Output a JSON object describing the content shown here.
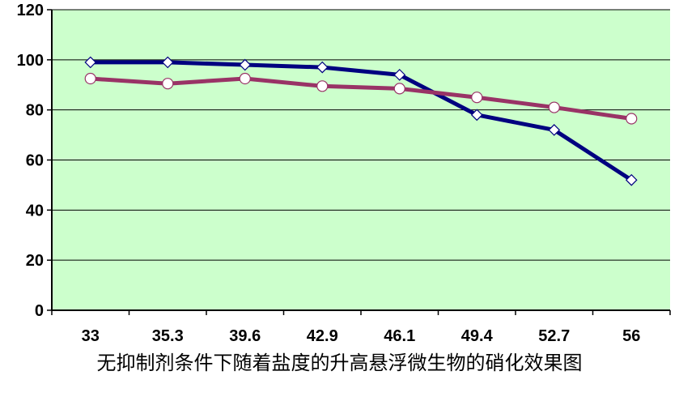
{
  "chart_data": {
    "type": "line",
    "categories": [
      "33",
      "35.3",
      "39.6",
      "42.9",
      "46.1",
      "49.4",
      "52.7",
      "56"
    ],
    "ylim": [
      0,
      120
    ],
    "yticks": [
      0,
      20,
      40,
      60,
      80,
      100,
      120
    ],
    "grid": true,
    "legend": "none",
    "series": [
      {
        "values": [
          99,
          99,
          98,
          97,
          94,
          78,
          72,
          52
        ],
        "color": "#000080",
        "marker": "diamond"
      },
      {
        "values": [
          92.5,
          90.5,
          92.5,
          89.5,
          88.5,
          85,
          81,
          76.5
        ],
        "color": "#993366",
        "marker": "circle"
      }
    ],
    "plot_background": "#ccffcc"
  },
  "caption": "无抑制剂条件下随着盐度的升高悬浮微生物的硝化效果图"
}
